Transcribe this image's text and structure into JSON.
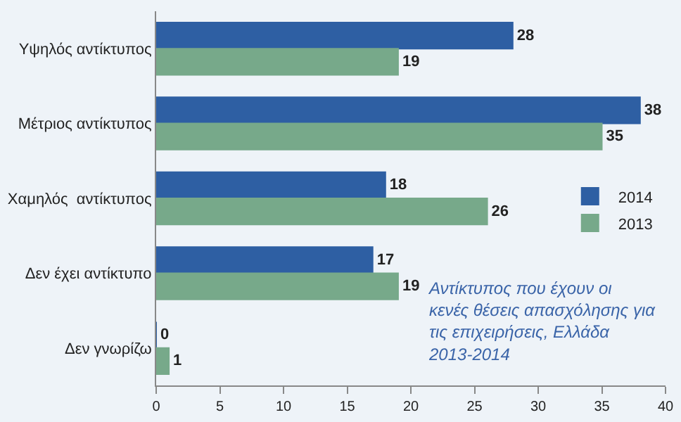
{
  "chart_data": {
    "type": "bar",
    "orientation": "horizontal",
    "categories": [
      "Υψηλός αντίκτυπος",
      "Μέτριος αντίκτυπος",
      "Χαμηλός  αντίκτυπος",
      "Δεν έχει αντίκτυπο",
      "Δεν γνωρίζω"
    ],
    "series": [
      {
        "name": "2014",
        "color": "#2e5fa3",
        "values": [
          28,
          38,
          18,
          17,
          0
        ]
      },
      {
        "name": "2013",
        "color": "#77a98a",
        "values": [
          19,
          35,
          26,
          19,
          1
        ]
      }
    ],
    "xlim": [
      0,
      40
    ],
    "xticks": [
      0,
      5,
      10,
      15,
      20,
      25,
      30,
      35,
      40
    ],
    "data_labels": true,
    "grid": false,
    "legend": "right",
    "annotations": [
      "Αντίκτυπος που έχουν οι κενές θέσεις απασχόλησης για τις επιχειρήσεις, Ελλάδα 2013-2014"
    ]
  }
}
